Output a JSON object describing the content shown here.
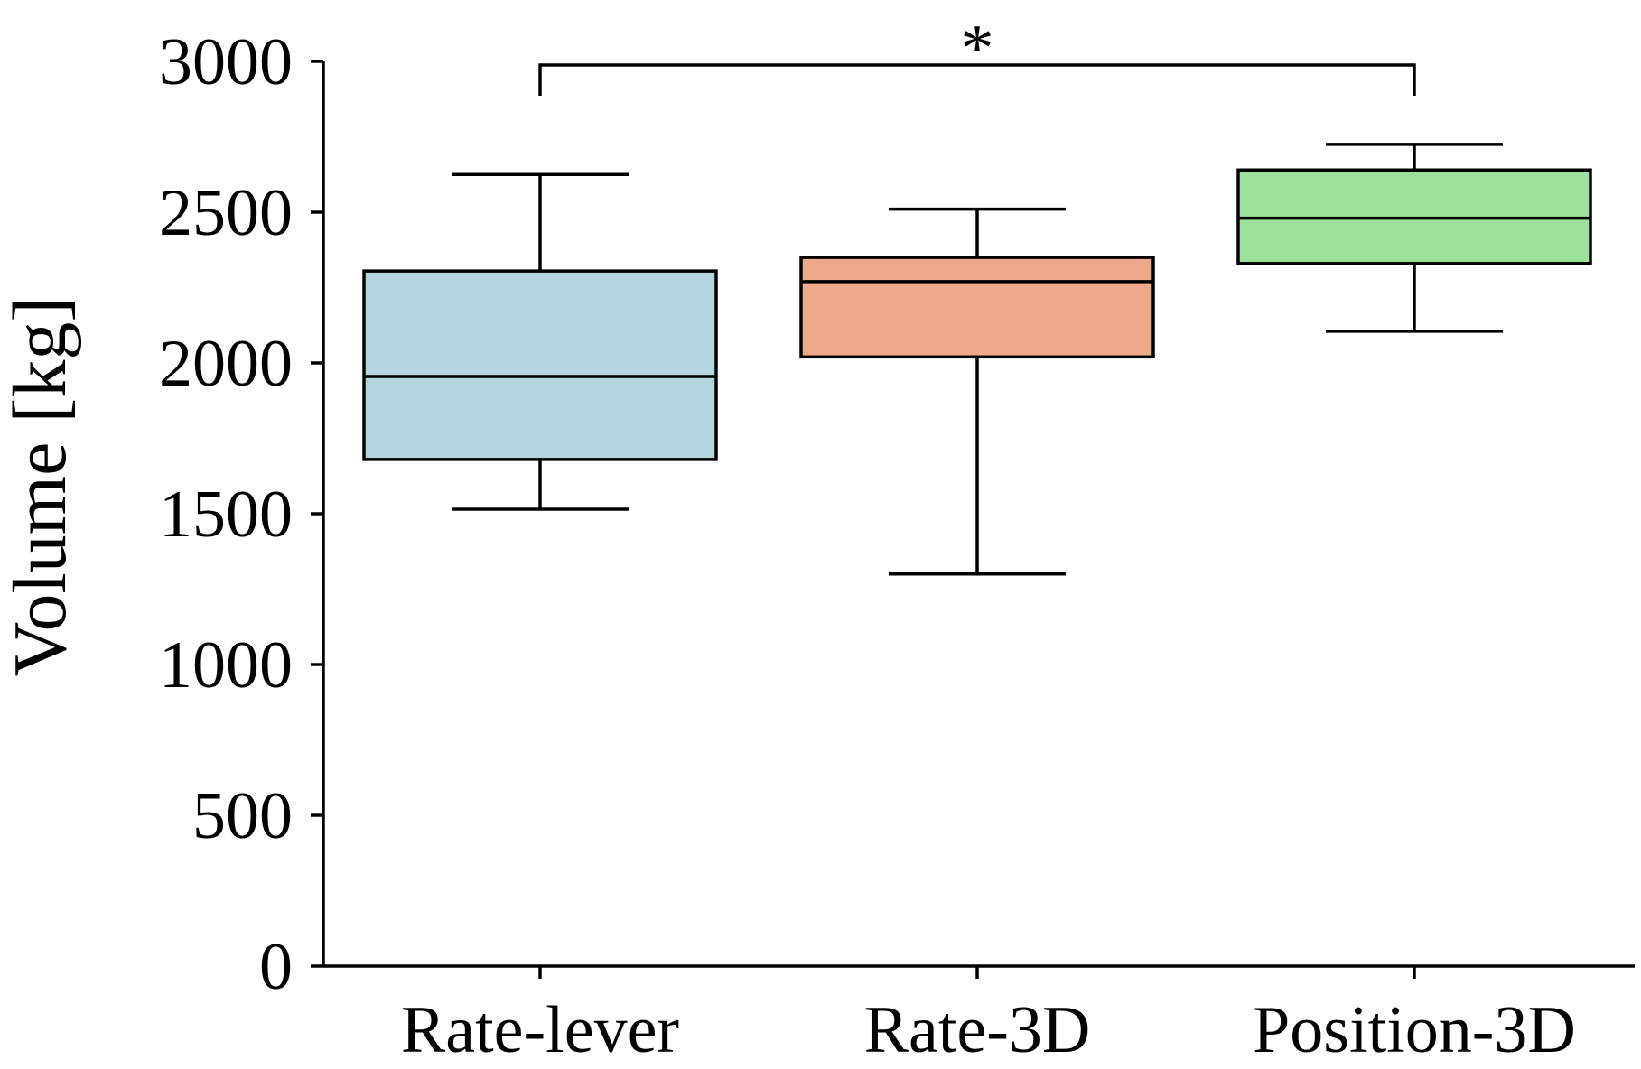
{
  "chart_data": {
    "type": "box",
    "title": "",
    "xlabel": "",
    "ylabel": "Volume [kg]",
    "ylim": [
      0,
      3000
    ],
    "yticks": [
      0,
      500,
      1000,
      1500,
      2000,
      2500,
      3000
    ],
    "ytick_labels": [
      "0",
      "500",
      "1000",
      "1500",
      "2000",
      "2500",
      "3000"
    ],
    "grid": false,
    "categories": [
      "Rate-lever",
      "Rate-3D",
      "Position-3D"
    ],
    "boxes": [
      {
        "name": "Rate-lever",
        "whisker_low": 1515,
        "q1": 1680,
        "median": 1955,
        "q3": 2305,
        "whisker_high": 2625,
        "color": "#b5d6df"
      },
      {
        "name": "Rate-3D",
        "whisker_low": 1300,
        "q1": 2020,
        "median": 2270,
        "q3": 2350,
        "whisker_high": 2510,
        "color": "#eea98b"
      },
      {
        "name": "Position-3D",
        "whisker_low": 2105,
        "q1": 2330,
        "median": 2480,
        "q3": 2640,
        "whisker_high": 2725,
        "color": "#9ce29a"
      }
    ],
    "significance": [
      {
        "from": "Rate-lever",
        "to": "Position-3D",
        "label": "*",
        "bracket_level": 2990
      }
    ]
  }
}
